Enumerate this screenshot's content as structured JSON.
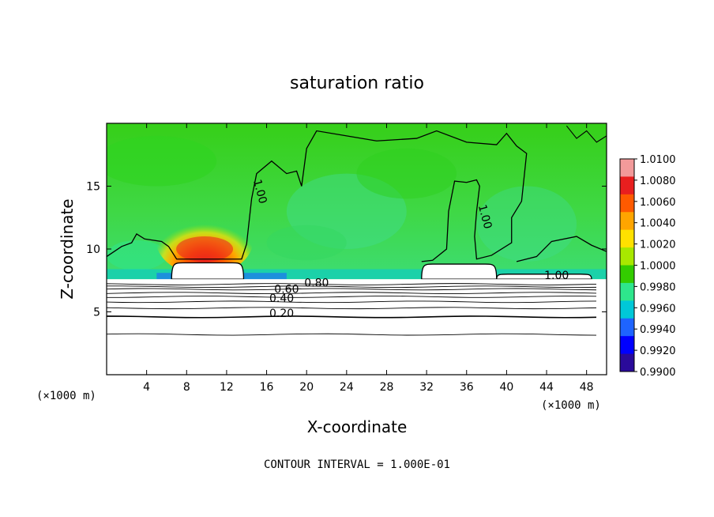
{
  "chart_data": {
    "type": "heatmap",
    "title": "saturation ratio",
    "xlabel": "X-coordinate",
    "ylabel": "Z-coordinate",
    "x_unit_left": "(×1000 m)",
    "x_unit_right": "(×1000 m)",
    "xlim": [
      0,
      50
    ],
    "ylim": [
      0,
      20
    ],
    "x_ticks": [
      4,
      8,
      12,
      16,
      20,
      24,
      28,
      32,
      36,
      40,
      44,
      48
    ],
    "y_ticks": [
      5,
      10,
      15
    ],
    "colorbar": {
      "ticks": [
        "1.0100",
        "1.0080",
        "1.0060",
        "1.0040",
        "1.0020",
        "1.0000",
        "0.9980",
        "0.9960",
        "0.9940",
        "0.9920",
        "0.9900"
      ],
      "colors": [
        "#f29a9a",
        "#e81f1f",
        "#ff5a00",
        "#ffa500",
        "#ffe100",
        "#a8e800",
        "#33cc00",
        "#2ee68c",
        "#00c8d8",
        "#1e64ff",
        "#0000ff",
        "#2a0a9a"
      ]
    },
    "contour_interval_text": "CONTOUR INTERVAL = 1.000E-01",
    "contour_labels": [
      {
        "text": "1.00",
        "x": 15,
        "z": 14.5
      },
      {
        "text": "1.00",
        "x": 37.5,
        "z": 12.5
      },
      {
        "text": "1.00",
        "x": 45,
        "z": 7.6
      },
      {
        "text": "0.80",
        "x": 21,
        "z": 7.0
      },
      {
        "text": "0.60",
        "x": 18,
        "z": 6.5
      },
      {
        "text": "0.40",
        "x": 17.5,
        "z": 5.8
      },
      {
        "text": "0.20",
        "x": 17.5,
        "z": 4.6
      }
    ],
    "near_surface_contours_z": [
      3.2,
      4.6,
      5.3,
      5.8,
      6.2,
      6.5,
      6.8,
      7.0,
      7.2
    ],
    "dry_regions": [
      {
        "x0": 6.5,
        "x1": 13.7,
        "z_top": 8.9
      },
      {
        "x0": 31.5,
        "x1": 39.0,
        "z_top": 8.8
      },
      {
        "x0": 39.0,
        "x1": 48.5,
        "z_top": 8.0
      }
    ],
    "supersaturated_core": {
      "x_center": 9.8,
      "z_base": 9.2,
      "z_peak": 13.0,
      "max": 1.008
    }
  }
}
